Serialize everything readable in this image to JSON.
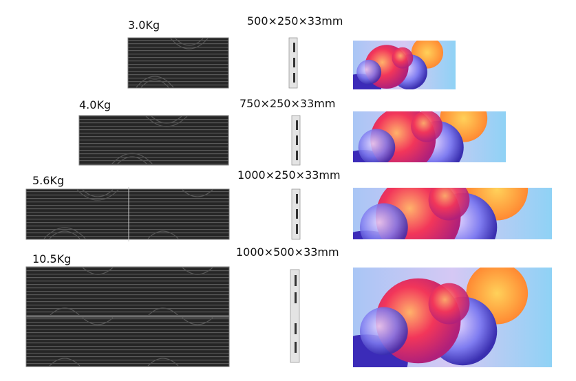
{
  "rows": [
    {
      "weight": "3.0Kg",
      "size": "500×250×33mm"
    },
    {
      "weight": "4.0Kg",
      "size": "750×250×33mm"
    },
    {
      "weight": "5.6Kg",
      "size": "1000×250×33mm"
    },
    {
      "weight": "10.5Kg",
      "size": "1000×500×33mm"
    }
  ]
}
